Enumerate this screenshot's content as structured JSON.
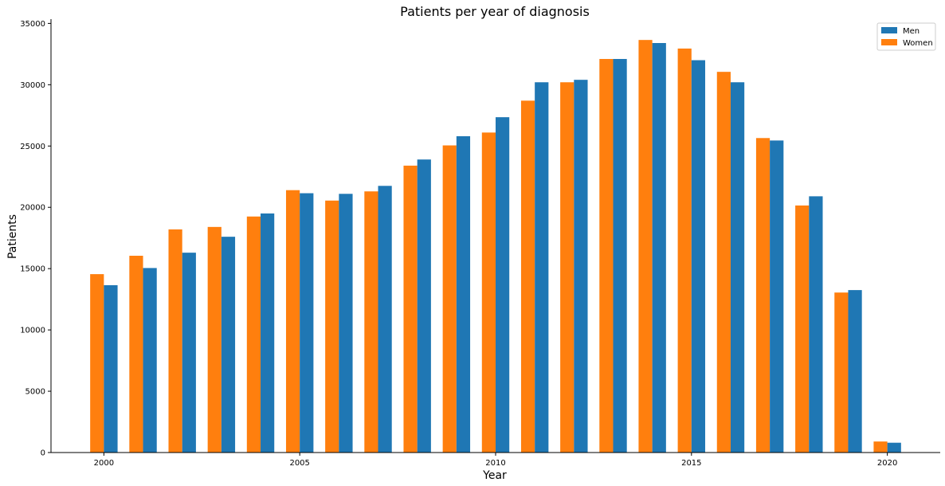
{
  "chart_data": {
    "type": "bar",
    "title": "Patients per year of diagnosis",
    "xlabel": "Year",
    "ylabel": "Patients",
    "x": [
      2000,
      2001,
      2002,
      2003,
      2004,
      2005,
      2006,
      2007,
      2008,
      2009,
      2010,
      2011,
      2012,
      2013,
      2014,
      2015,
      2016,
      2017,
      2018,
      2019,
      2020
    ],
    "series": [
      {
        "name": "Men",
        "color": "#1f77b4",
        "values": [
          13650,
          15050,
          16300,
          17600,
          19500,
          21150,
          21100,
          21750,
          23900,
          25800,
          27350,
          30200,
          30400,
          32100,
          33400,
          32000,
          30200,
          25450,
          20900,
          13250,
          800
        ]
      },
      {
        "name": "Women",
        "color": "#ff7f0e",
        "values": [
          14550,
          16050,
          18200,
          18400,
          19250,
          21400,
          20550,
          21300,
          23400,
          25050,
          26100,
          28700,
          30200,
          32100,
          33650,
          32950,
          31050,
          25650,
          20150,
          13050,
          900
        ]
      }
    ],
    "xticks": [
      2000,
      2005,
      2010,
      2015,
      2020
    ],
    "xlim": [
      1998.65,
      2021.35
    ],
    "yticks": [
      0,
      5000,
      10000,
      15000,
      20000,
      25000,
      30000,
      35000
    ],
    "ylim": [
      0,
      35350
    ],
    "legend": {
      "position": "top-right",
      "entries": [
        "Men",
        "Women"
      ]
    },
    "grid": false
  }
}
